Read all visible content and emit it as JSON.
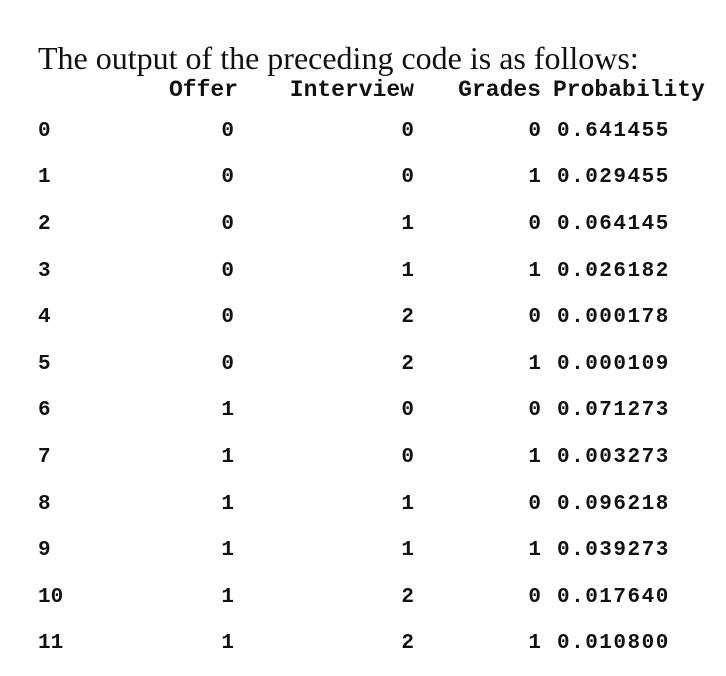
{
  "intro_text": "The output of the preceding code is as follows:",
  "table": {
    "columns": [
      "Offer",
      "Interview",
      "Grades",
      "Probability"
    ],
    "rows": [
      {
        "index": "0",
        "offer": "0",
        "interview": "0",
        "grades": "0",
        "probability": "0.641455"
      },
      {
        "index": "1",
        "offer": "0",
        "interview": "0",
        "grades": "1",
        "probability": "0.029455"
      },
      {
        "index": "2",
        "offer": "0",
        "interview": "1",
        "grades": "0",
        "probability": "0.064145"
      },
      {
        "index": "3",
        "offer": "0",
        "interview": "1",
        "grades": "1",
        "probability": "0.026182"
      },
      {
        "index": "4",
        "offer": "0",
        "interview": "2",
        "grades": "0",
        "probability": "0.000178"
      },
      {
        "index": "5",
        "offer": "0",
        "interview": "2",
        "grades": "1",
        "probability": "0.000109"
      },
      {
        "index": "6",
        "offer": "1",
        "interview": "0",
        "grades": "0",
        "probability": "0.071273"
      },
      {
        "index": "7",
        "offer": "1",
        "interview": "0",
        "grades": "1",
        "probability": "0.003273"
      },
      {
        "index": "8",
        "offer": "1",
        "interview": "1",
        "grades": "0",
        "probability": "0.096218"
      },
      {
        "index": "9",
        "offer": "1",
        "interview": "1",
        "grades": "1",
        "probability": "0.039273"
      },
      {
        "index": "10",
        "offer": "1",
        "interview": "2",
        "grades": "0",
        "probability": "0.017640"
      },
      {
        "index": "11",
        "offer": "1",
        "interview": "2",
        "grades": "1",
        "probability": "0.010800"
      }
    ]
  }
}
